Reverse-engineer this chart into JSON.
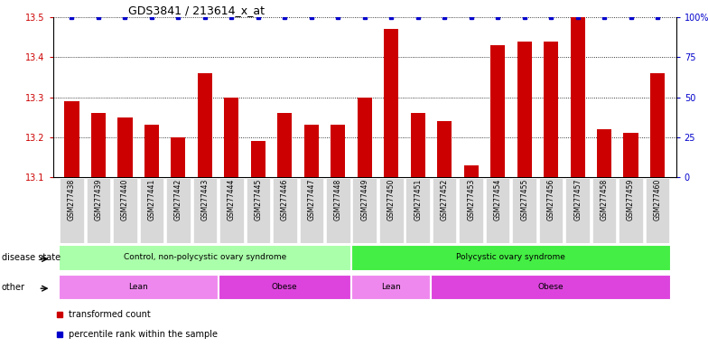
{
  "title": "GDS3841 / 213614_x_at",
  "samples": [
    "GSM277438",
    "GSM277439",
    "GSM277440",
    "GSM277441",
    "GSM277442",
    "GSM277443",
    "GSM277444",
    "GSM277445",
    "GSM277446",
    "GSM277447",
    "GSM277448",
    "GSM277449",
    "GSM277450",
    "GSM277451",
    "GSM277452",
    "GSM277453",
    "GSM277454",
    "GSM277455",
    "GSM277456",
    "GSM277457",
    "GSM277458",
    "GSM277459",
    "GSM277460"
  ],
  "bar_values": [
    13.29,
    13.26,
    13.25,
    13.23,
    13.2,
    13.36,
    13.3,
    13.19,
    13.26,
    13.23,
    13.23,
    13.3,
    13.47,
    13.26,
    13.24,
    13.13,
    13.43,
    13.44,
    13.44,
    13.5,
    13.22,
    13.21,
    13.36
  ],
  "percentile_values": [
    100,
    100,
    100,
    100,
    100,
    100,
    100,
    100,
    100,
    100,
    100,
    100,
    100,
    100,
    100,
    100,
    100,
    100,
    100,
    100,
    100,
    100,
    100
  ],
  "bar_color": "#cc0000",
  "dot_color": "#0000cc",
  "ylim_left": [
    13.1,
    13.5
  ],
  "ylim_right": [
    0,
    100
  ],
  "yticks_left": [
    13.1,
    13.2,
    13.3,
    13.4,
    13.5
  ],
  "yticks_right": [
    0,
    25,
    50,
    75,
    100
  ],
  "ytick_labels_right": [
    "0",
    "25",
    "50",
    "75",
    "100%"
  ],
  "grid_color": "#000000",
  "plot_bg": "#ffffff",
  "disease_state_groups": [
    {
      "label": "Control, non-polycystic ovary syndrome",
      "start": 0,
      "end": 11,
      "color": "#aaffaa"
    },
    {
      "label": "Polycystic ovary syndrome",
      "start": 11,
      "end": 23,
      "color": "#44ee44"
    }
  ],
  "other_groups": [
    {
      "label": "Lean",
      "start": 0,
      "end": 6,
      "color": "#ee88ee"
    },
    {
      "label": "Obese",
      "start": 6,
      "end": 11,
      "color": "#dd44dd"
    },
    {
      "label": "Lean",
      "start": 11,
      "end": 14,
      "color": "#ee88ee"
    },
    {
      "label": "Obese",
      "start": 14,
      "end": 23,
      "color": "#dd44dd"
    }
  ],
  "legend_items": [
    {
      "label": "transformed count",
      "color": "#cc0000",
      "marker": "s"
    },
    {
      "label": "percentile rank within the sample",
      "color": "#0000cc",
      "marker": "s"
    }
  ],
  "disease_state_label": "disease state",
  "other_label": "other",
  "xtick_bg": "#d8d8d8"
}
